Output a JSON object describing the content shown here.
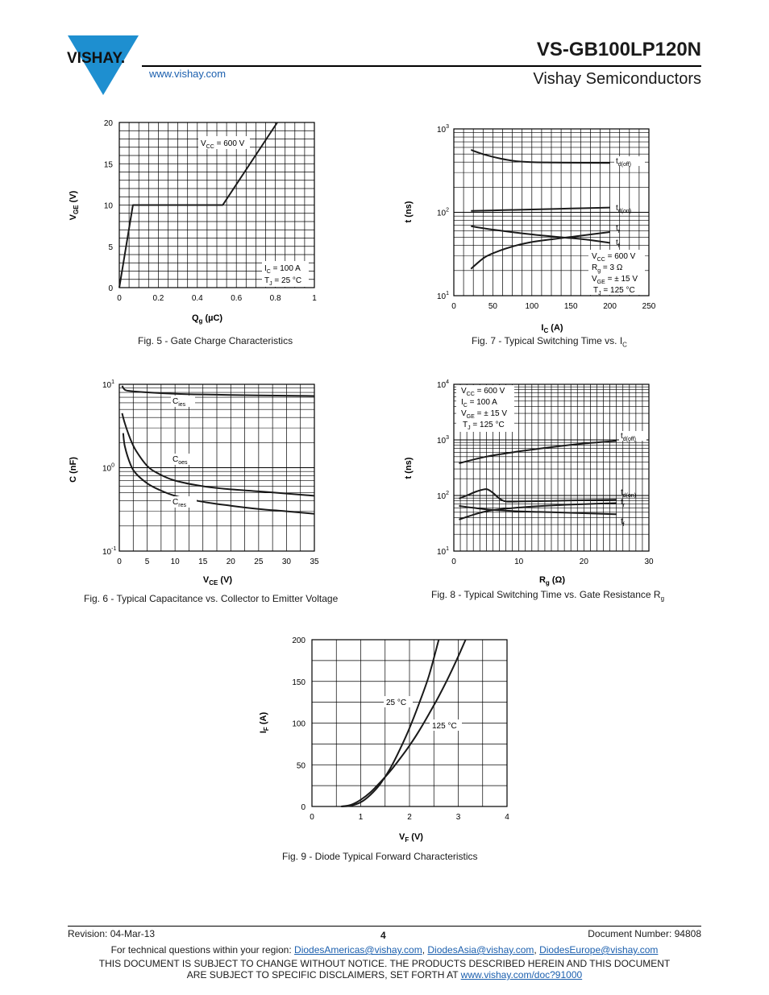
{
  "header": {
    "logo_text": "VISHAY.",
    "website": "www.vishay.com",
    "part_number": "VS-GB100LP120N",
    "company": "Vishay Semiconductors"
  },
  "figures": [
    {
      "id": "fig5",
      "caption": "Fig. 5 - Gate Charge Characteristics",
      "xlabel": "Q",
      "xlabel_sub": "g",
      "xlabel_unit": " (µC)",
      "ylabel": "V",
      "ylabel_sub": "GE",
      "ylabel_unit": " (V)",
      "xticks": [
        "0",
        "0.2",
        "0.4",
        "0.6",
        "0.8",
        "1"
      ],
      "yticks": [
        "0",
        "5",
        "10",
        "15",
        "20"
      ],
      "annotations": [
        "V",
        "CC",
        " = 600 V",
        "I",
        "C",
        " = 100 A",
        "T",
        "J",
        " = 25 °C"
      ]
    },
    {
      "id": "fig6",
      "caption": "Fig. 6 - Typical Capacitance vs. Collector to Emitter Voltage",
      "xlabel": "V",
      "xlabel_sub": "CE",
      "xlabel_unit": " (V)",
      "ylabel": "C (nF)",
      "xticks": [
        "0",
        "5",
        "10",
        "15",
        "20",
        "25",
        "30",
        "35"
      ],
      "yticks_base": "10",
      "yticks_exp": [
        "-1",
        "0",
        "1"
      ],
      "curve_labels": [
        {
          "main": "C",
          "sub": "ies"
        },
        {
          "main": "C",
          "sub": "oes"
        },
        {
          "main": "C",
          "sub": "res"
        }
      ]
    },
    {
      "id": "fig7",
      "caption": "Fig. 7 - Typical Switching Time vs. I",
      "caption_sub": "C",
      "xlabel": "I",
      "xlabel_sub": "C",
      "xlabel_unit": " (A)",
      "ylabel": "t (ns)",
      "xticks": [
        "0",
        "50",
        "100",
        "150",
        "200",
        "250"
      ],
      "yticks_base": "10",
      "yticks_exp": [
        "1",
        "2",
        "3"
      ],
      "curve_labels": [
        {
          "main": "t",
          "sub": "d(off)"
        },
        {
          "main": "t",
          "sub": "d(on)"
        },
        {
          "main": "t",
          "sub": "r"
        },
        {
          "main": "t",
          "sub": "f"
        }
      ],
      "conditions": [
        "V",
        "CC",
        " = 600 V",
        "R",
        "g",
        " = 3 Ω",
        "V",
        "GE",
        " = ± 15 V",
        "T",
        "J",
        " = 125 °C"
      ]
    },
    {
      "id": "fig8",
      "caption": "Fig. 8 - Typical Switching Time vs. Gate Resistance R",
      "caption_sub": "g",
      "xlabel": "R",
      "xlabel_sub": "g",
      "xlabel_unit": " (Ω)",
      "ylabel": "t (ns)",
      "xticks": [
        "0",
        "10",
        "20",
        "30"
      ],
      "yticks_base": "10",
      "yticks_exp": [
        "1",
        "2",
        "3",
        "4"
      ],
      "curve_labels": [
        {
          "main": "t",
          "sub": "d(off)"
        },
        {
          "main": "t",
          "sub": "d(on)"
        },
        {
          "main": "t",
          "sub": "r"
        },
        {
          "main": "t",
          "sub": "f"
        }
      ],
      "conditions": [
        "V",
        "CC",
        " = 600 V",
        "I",
        "C",
        " = 100 A",
        "V",
        "GE",
        " = ± 15 V",
        "T",
        "J",
        " = 125 °C"
      ]
    },
    {
      "id": "fig9",
      "caption": "Fig. 9 - Diode Typical Forward Characteristics",
      "xlabel": "V",
      "xlabel_sub": "F",
      "xlabel_unit": " (V)",
      "ylabel": "I",
      "ylabel_sub": "F",
      "ylabel_unit": " (A)",
      "xticks": [
        "0",
        "1",
        "2",
        "3",
        "4"
      ],
      "yticks": [
        "0",
        "50",
        "100",
        "150",
        "200"
      ],
      "curve_labels": [
        "25 °C",
        "125 °C"
      ]
    }
  ],
  "chart_data": [
    {
      "type": "line",
      "title": "Fig. 5 - Gate Charge Characteristics",
      "xlabel": "Qg (µC)",
      "ylabel": "VGE (V)",
      "xlim": [
        0,
        1
      ],
      "ylim": [
        0,
        20
      ],
      "series": [
        {
          "name": "VCC = 600 V",
          "x": [
            0,
            0.07,
            0.53,
            0.81
          ],
          "y": [
            0,
            10,
            10,
            20
          ]
        }
      ]
    },
    {
      "type": "line",
      "title": "Fig. 6 - Typical Capacitance vs. Collector to Emitter Voltage",
      "xlabel": "VCE (V)",
      "ylabel": "C (nF)",
      "xlim": [
        0,
        35
      ],
      "ylim": [
        0.1,
        10
      ],
      "yscale": "log",
      "series": [
        {
          "name": "Cies",
          "x": [
            0.5,
            1,
            2,
            5,
            10,
            15,
            20,
            25,
            30,
            35
          ],
          "y": [
            9.6,
            8.6,
            8.3,
            8.0,
            7.7,
            7.55,
            7.45,
            7.35,
            7.3,
            7.25
          ]
        },
        {
          "name": "Coes",
          "x": [
            0.5,
            1,
            2,
            3,
            5,
            7,
            10,
            15,
            20,
            25,
            30,
            35
          ],
          "y": [
            4.5,
            3.4,
            2.2,
            1.6,
            1.05,
            0.85,
            0.7,
            0.6,
            0.55,
            0.52,
            0.49,
            0.46
          ]
        },
        {
          "name": "Cres",
          "x": [
            0.7,
            1,
            2,
            3,
            5,
            7,
            10,
            15,
            20,
            25,
            30,
            35
          ],
          "y": [
            2.6,
            1.8,
            1.1,
            0.85,
            0.65,
            0.55,
            0.46,
            0.39,
            0.35,
            0.32,
            0.3,
            0.28
          ]
        }
      ]
    },
    {
      "type": "line",
      "title": "Fig. 7 - Typical Switching Time vs. IC",
      "xlabel": "IC (A)",
      "ylabel": "t (ns)",
      "xlim": [
        0,
        250
      ],
      "ylim": [
        10,
        1000
      ],
      "yscale": "log",
      "series": [
        {
          "name": "td(off)",
          "x": [
            22,
            40,
            60,
            80,
            100,
            130,
            160,
            200
          ],
          "y": [
            560,
            490,
            440,
            410,
            400,
            395,
            393,
            390
          ]
        },
        {
          "name": "td(on)",
          "x": [
            22,
            60,
            100,
            150,
            200
          ],
          "y": [
            104,
            106,
            108,
            111,
            114
          ]
        },
        {
          "name": "tr",
          "x": [
            22,
            50,
            80,
            110,
            140,
            170,
            200
          ],
          "y": [
            68,
            62,
            57,
            53,
            50,
            47,
            43
          ]
        },
        {
          "name": "tf",
          "x": [
            22,
            40,
            60,
            80,
            100,
            130,
            160,
            200
          ],
          "y": [
            21,
            29,
            35,
            40,
            44,
            48,
            52,
            58
          ]
        }
      ]
    },
    {
      "type": "line",
      "title": "Fig. 8 - Typical Switching Time vs. Gate Resistance Rg",
      "xlabel": "Rg (Ω)",
      "ylabel": "t (ns)",
      "xlim": [
        0,
        30
      ],
      "ylim": [
        10,
        10000
      ],
      "yscale": "log",
      "series": [
        {
          "name": "td(off)",
          "x": [
            0.8,
            5,
            10,
            15,
            20,
            25
          ],
          "y": [
            380,
            500,
            620,
            740,
            860,
            960
          ]
        },
        {
          "name": "td(on)",
          "x": [
            0.8,
            2,
            3.5,
            5,
            6,
            7,
            8,
            10,
            15,
            20,
            25
          ],
          "y": [
            88,
            100,
            118,
            130,
            112,
            88,
            78,
            78,
            80,
            82,
            84
          ]
        },
        {
          "name": "tr",
          "x": [
            0.8,
            3,
            6,
            10,
            15,
            20,
            25
          ],
          "y": [
            65,
            60,
            55,
            52,
            50,
            48,
            46
          ]
        },
        {
          "name": "tf",
          "x": [
            0.8,
            3,
            5,
            8,
            12,
            16,
            20,
            25
          ],
          "y": [
            37,
            45,
            52,
            58,
            63,
            67,
            70,
            73
          ]
        }
      ]
    },
    {
      "type": "line",
      "title": "Fig. 9 - Diode Typical Forward Characteristics",
      "xlabel": "VF (V)",
      "ylabel": "IF (A)",
      "xlim": [
        0,
        4
      ],
      "ylim": [
        0,
        200
      ],
      "series": [
        {
          "name": "25 °C",
          "x": [
            0.6,
            0.8,
            1.0,
            1.2,
            1.4,
            1.6,
            1.8,
            2.0,
            2.2,
            2.4,
            2.6
          ],
          "y": [
            0,
            1,
            5,
            14,
            27,
            45,
            68,
            94,
            124,
            157,
            200
          ]
        },
        {
          "name": "125 °C",
          "x": [
            0.6,
            0.8,
            1.0,
            1.2,
            1.4,
            1.6,
            1.8,
            2.0,
            2.2,
            2.4,
            2.6,
            2.8,
            3.0,
            3.15
          ],
          "y": [
            0,
            2,
            8,
            17,
            29,
            42,
            57,
            73,
            91,
            111,
            132,
            155,
            180,
            200
          ]
        }
      ]
    }
  ],
  "footer": {
    "revision": "Revision: 04-Mar-13",
    "page": "4",
    "doc_number": "Document Number: 94808",
    "contact_prefix": "For technical questions within your region: ",
    "emails": [
      "DiodesAmericas@vishay.com",
      "DiodesAsia@vishay.com",
      "DiodesEurope@vishay.com"
    ],
    "sep": ", ",
    "disclaimer_1": "THIS DOCUMENT IS SUBJECT TO CHANGE WITHOUT NOTICE. THE PRODUCTS DESCRIBED HEREIN AND THIS DOCUMENT",
    "disclaimer_2": "ARE SUBJECT TO SPECIFIC DISCLAIMERS, SET FORTH AT ",
    "disclaimer_link": "www.vishay.com/doc?91000"
  },
  "colors": {
    "brand_blue": "#1e8fd0",
    "link": "#1b5fae",
    "url": "#2a7ab8"
  }
}
